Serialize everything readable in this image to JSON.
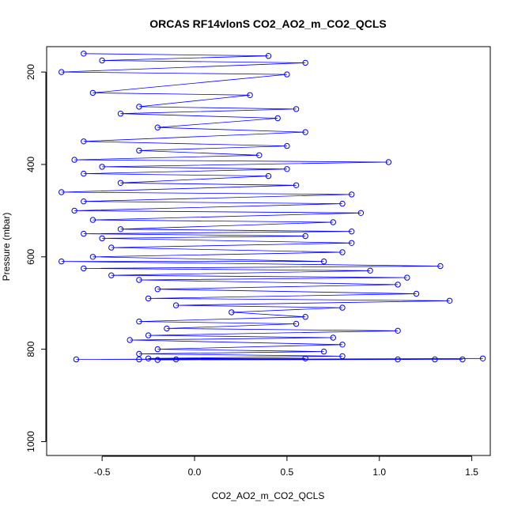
{
  "chart_data": {
    "type": "scatter",
    "title": "ORCAS RF14vlonS CO2_AO2_m_CO2_QCLS",
    "xlabel": "CO2_AO2_m_CO2_QCLS",
    "ylabel": "Pressure (mbar)",
    "xlim": [
      -0.8,
      1.6
    ],
    "ylim": [
      1030,
      145
    ],
    "y_reversed": true,
    "x_ticks": [
      -0.5,
      0.0,
      0.5,
      1.0,
      1.5
    ],
    "x_tick_labels": [
      "-0.5",
      "0.0",
      "0.5",
      "1.0",
      "1.5"
    ],
    "y_ticks": [
      200,
      400,
      600,
      800,
      1000
    ],
    "y_tick_labels": [
      "200",
      "400",
      "600",
      "800",
      "1000"
    ],
    "grid": false,
    "legend": "none",
    "series_color": "#0000ff",
    "marker": "open-circle",
    "connect_points": true,
    "series": [
      {
        "x": [
          -0.6,
          0.4,
          -0.5,
          0.6,
          -0.72,
          0.5,
          -0.55,
          0.3,
          -0.3,
          0.55,
          -0.4,
          0.45,
          -0.2,
          0.6,
          -0.6,
          0.5,
          -0.3,
          0.35,
          -0.65,
          1.05,
          -0.5,
          0.5,
          -0.6,
          0.4,
          -0.4,
          0.55,
          -0.72,
          0.85,
          -0.6,
          0.8,
          -0.65,
          0.9,
          -0.55,
          0.75,
          -0.4,
          0.85,
          -0.6,
          0.6,
          -0.5,
          0.85,
          -0.45,
          0.8,
          -0.55,
          0.7,
          -0.72,
          1.33,
          -0.6,
          0.95,
          -0.45,
          1.15,
          -0.3,
          1.1,
          -0.2,
          1.2,
          -0.25,
          1.38,
          -0.1,
          0.8,
          0.2,
          0.6,
          -0.3,
          0.55,
          -0.15,
          1.1,
          -0.25,
          0.75,
          -0.35,
          0.8,
          -0.2,
          0.7,
          -0.3,
          0.8,
          -0.25,
          0.6,
          -0.64,
          1.3,
          -0.3,
          1.45,
          -0.2,
          1.56,
          -0.1,
          1.1
        ],
        "y": [
          160,
          165,
          175,
          180,
          200,
          205,
          245,
          250,
          275,
          280,
          290,
          300,
          320,
          330,
          350,
          360,
          370,
          380,
          390,
          395,
          405,
          410,
          420,
          425,
          440,
          445,
          460,
          465,
          480,
          485,
          500,
          505,
          520,
          525,
          540,
          545,
          550,
          555,
          560,
          570,
          580,
          590,
          600,
          610,
          610,
          620,
          625,
          630,
          640,
          645,
          650,
          660,
          670,
          680,
          690,
          695,
          705,
          710,
          720,
          730,
          740,
          745,
          755,
          760,
          770,
          775,
          780,
          790,
          800,
          805,
          810,
          815,
          820,
          820,
          822,
          822,
          822,
          822,
          823,
          820,
          822,
          822
        ]
      }
    ]
  }
}
